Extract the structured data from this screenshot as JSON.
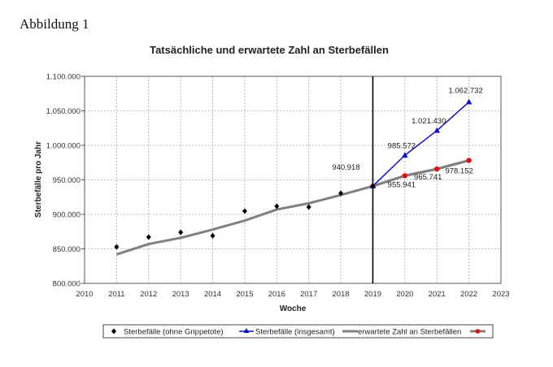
{
  "figure_label": "Abbildung 1",
  "chart_data": {
    "type": "line",
    "title": "Tatsächliche und erwartete Zahl an Sterbefällen",
    "xlabel": "Woche",
    "ylabel": "Sterbefälle pro Jahr",
    "xlim": [
      2010,
      2023
    ],
    "ylim": [
      800000,
      1100000
    ],
    "grid": true,
    "legend_position": "bottom",
    "x_ticks": [
      "2010",
      "2011",
      "2012",
      "2013",
      "2014",
      "2015",
      "2016",
      "2017",
      "2018",
      "2019",
      "2020",
      "2021",
      "2022",
      "2023"
    ],
    "y_ticks": [
      {
        "value": 800000,
        "label": "800.000"
      },
      {
        "value": 850000,
        "label": "850.000"
      },
      {
        "value": 900000,
        "label": "900.000"
      },
      {
        "value": 950000,
        "label": "950.000"
      },
      {
        "value": 1000000,
        "label": "1.000.000"
      },
      {
        "value": 1050000,
        "label": "1.050.000"
      },
      {
        "value": 1100000,
        "label": "1.100.000"
      }
    ],
    "vertical_line_x": 2019,
    "series": [
      {
        "name": "Sterbefälle (ohne Grippetote)",
        "color": "#000000",
        "marker": "diamond",
        "line": false,
        "x": [
          2011,
          2012,
          2013,
          2014,
          2015,
          2016,
          2017,
          2018,
          2019
        ],
        "values": [
          852900,
          867000,
          874000,
          869000,
          904700,
          911800,
          910600,
          930600,
          940918
        ]
      },
      {
        "name": "Sterbefälle (insgesamt)",
        "color": "#1010c8",
        "marker": "triangle",
        "line": true,
        "x": [
          2019,
          2020,
          2021,
          2022
        ],
        "values": [
          940918,
          985572,
          1021430,
          1062732
        ],
        "labels": [
          "",
          "985.572",
          "1.021.430",
          "1.062.732"
        ]
      },
      {
        "name": "erwartete Zahl an Sterbefällen",
        "color": "#808080",
        "marker": "none",
        "line": true,
        "x": [
          2011,
          2012,
          2013,
          2014,
          2015,
          2016,
          2017,
          2018,
          2019,
          2020,
          2021,
          2022
        ],
        "values": [
          842000,
          857000,
          866000,
          878000,
          891000,
          907000,
          916000,
          928000,
          940918,
          955941,
          965741,
          978152
        ]
      },
      {
        "name": "",
        "color": "#e01010",
        "line_color": "#808080",
        "marker": "circle",
        "line": true,
        "x": [
          2019,
          2020,
          2021,
          2022
        ],
        "values": [
          940918,
          955941,
          965741,
          978152
        ],
        "labels": [
          "940.918",
          "955.941",
          "965.741",
          "978.152"
        ]
      }
    ]
  }
}
